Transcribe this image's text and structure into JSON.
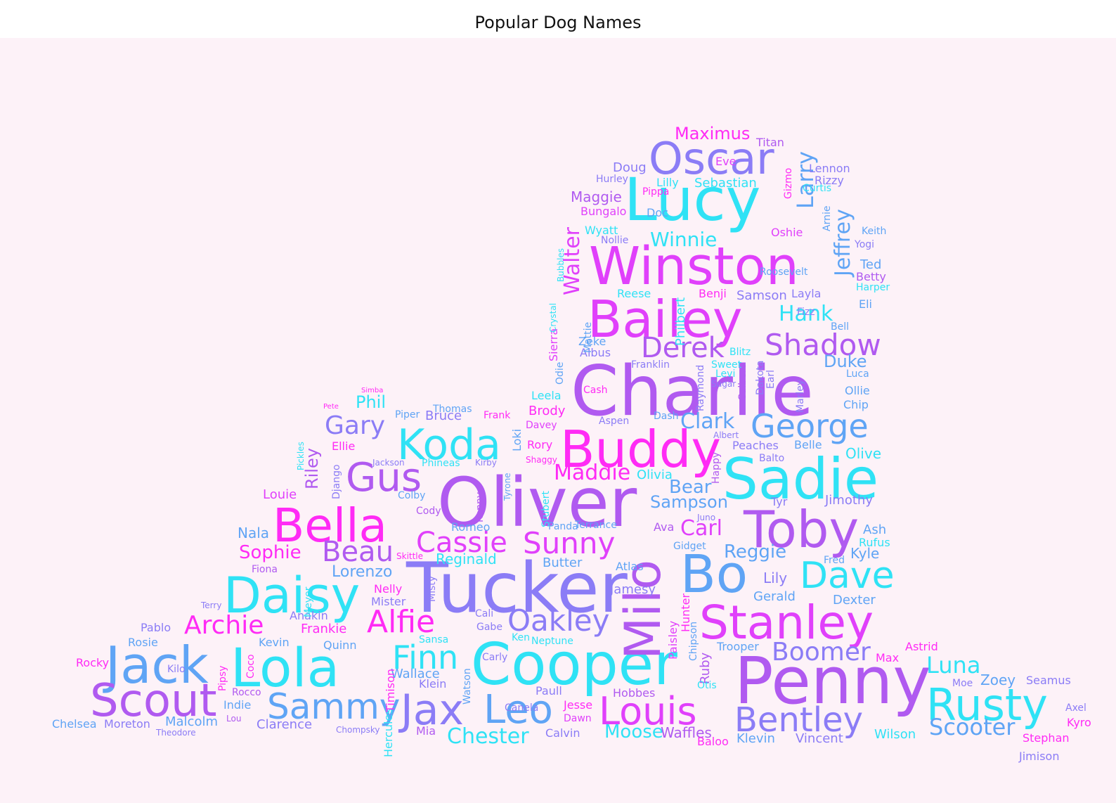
{
  "title": "Popular Dog Names",
  "palette": [
    "#ff2bf5",
    "#e040fb",
    "#b05af0",
    "#8b7cf6",
    "#5fa4f5",
    "#2fe2f5"
  ],
  "words": [
    {
      "t": "Charlie",
      "c": 2
    },
    {
      "t": "Oliver",
      "c": 2
    },
    {
      "t": "Cooper",
      "c": 5
    },
    {
      "t": "Penny",
      "c": 2
    },
    {
      "t": "Tucker",
      "c": 3
    },
    {
      "t": "Lola",
      "c": 5
    },
    {
      "t": "Buddy",
      "c": 0
    },
    {
      "t": "Sadie",
      "c": 5
    },
    {
      "t": "Winston",
      "c": 1
    },
    {
      "t": "Bella",
      "c": 0
    },
    {
      "t": "Lucy",
      "c": 5
    },
    {
      "t": "Bo",
      "c": 4
    },
    {
      "t": "Toby",
      "c": 2
    },
    {
      "t": "Daisy",
      "c": 5
    },
    {
      "t": "Stanley",
      "c": 1
    },
    {
      "t": "Bailey",
      "c": 1
    },
    {
      "t": "Jack",
      "c": 4
    },
    {
      "t": "Scout",
      "c": 2
    },
    {
      "t": "Rusty",
      "c": 5
    },
    {
      "t": "Milo",
      "c": 2
    },
    {
      "t": "Koda",
      "c": 5
    },
    {
      "t": "Oscar",
      "c": 3
    },
    {
      "t": "Gus",
      "c": 2
    },
    {
      "t": "Louis",
      "c": 1
    },
    {
      "t": "George",
      "c": 4
    },
    {
      "t": "Jax",
      "c": 3
    },
    {
      "t": "Leo",
      "c": 4
    },
    {
      "t": "Sammy",
      "c": 4
    },
    {
      "t": "Bentley",
      "c": 3
    },
    {
      "t": "Dave",
      "c": 5
    },
    {
      "t": "Alfie",
      "c": 0
    },
    {
      "t": "Finn",
      "c": 5
    },
    {
      "t": "Oakley",
      "c": 3
    },
    {
      "t": "Cassie",
      "c": 1
    },
    {
      "t": "Sunny",
      "c": 1
    },
    {
      "t": "Shadow",
      "c": 2
    },
    {
      "t": "Derek",
      "c": 2
    },
    {
      "t": "Archie",
      "c": 0
    },
    {
      "t": "Boomer",
      "c": 3
    },
    {
      "t": "Beau",
      "c": 2
    },
    {
      "t": "Gary",
      "c": 3
    },
    {
      "t": "Walter",
      "c": 1
    },
    {
      "t": "Jeffrey",
      "c": 4
    },
    {
      "t": "Larry",
      "c": 4
    },
    {
      "t": "Maddie",
      "c": 0
    },
    {
      "t": "Scooter",
      "c": 4
    },
    {
      "t": "Luna",
      "c": 5
    },
    {
      "t": "Chester",
      "c": 5
    },
    {
      "t": "Lorenzo",
      "c": 4
    },
    {
      "t": "Sampson",
      "c": 4
    },
    {
      "t": "Carl",
      "c": 1
    },
    {
      "t": "Bear",
      "c": 4
    },
    {
      "t": "Clark",
      "c": 4
    },
    {
      "t": "Hank",
      "c": 5
    },
    {
      "t": "Duke",
      "c": 4
    },
    {
      "t": "Winnie",
      "c": 5
    },
    {
      "t": "Maximus",
      "c": 0
    },
    {
      "t": "Reggie",
      "c": 4
    },
    {
      "t": "Sophie",
      "c": 0
    },
    {
      "t": "Riley",
      "c": 2
    },
    {
      "t": "Phil",
      "c": 5
    },
    {
      "t": "Moose",
      "c": 5
    },
    {
      "t": "Waffles",
      "c": 2
    },
    {
      "t": "Wallace",
      "c": 4
    },
    {
      "t": "Dexter",
      "c": 4
    },
    {
      "t": "Gerald",
      "c": 4
    },
    {
      "t": "Kyle",
      "c": 4
    },
    {
      "t": "Lily",
      "c": 3
    },
    {
      "t": "Bruce",
      "c": 3
    },
    {
      "t": "Sebastian",
      "c": 5
    },
    {
      "t": "Reginald",
      "c": 5
    },
    {
      "t": "Butter",
      "c": 4
    },
    {
      "t": "Jimothy",
      "c": 3
    },
    {
      "t": "Olive",
      "c": 5
    },
    {
      "t": "Tyr",
      "c": 3
    },
    {
      "t": "Ava",
      "c": 2
    },
    {
      "t": "Nala",
      "c": 4
    },
    {
      "t": "Louie",
      "c": 1
    },
    {
      "t": "Pablo",
      "c": 3
    },
    {
      "t": "Rosie",
      "c": 4
    },
    {
      "t": "Rocky",
      "c": 0
    },
    {
      "t": "Indie",
      "c": 4
    },
    {
      "t": "Malcolm",
      "c": 4
    },
    {
      "t": "Chelsea",
      "c": 4
    },
    {
      "t": "Moreton",
      "c": 3
    },
    {
      "t": "Clarence",
      "c": 3
    },
    {
      "t": "Mia",
      "c": 2
    },
    {
      "t": "Calvin",
      "c": 3
    },
    {
      "t": "Dawn",
      "c": 1
    },
    {
      "t": "Jesse",
      "c": 0
    },
    {
      "t": "Hobbes",
      "c": 2
    },
    {
      "t": "Baloo",
      "c": 0
    },
    {
      "t": "Klevin",
      "c": 4
    },
    {
      "t": "Vincent",
      "c": 3
    },
    {
      "t": "Wilson",
      "c": 5
    },
    {
      "t": "Stephan",
      "c": 0
    },
    {
      "t": "Kyro",
      "c": 0
    },
    {
      "t": "Jimison",
      "c": 3
    },
    {
      "t": "Seamus",
      "c": 3
    },
    {
      "t": "Zoey",
      "c": 4
    },
    {
      "t": "Moe",
      "c": 3
    },
    {
      "t": "Astrid",
      "c": 0
    },
    {
      "t": "Max",
      "c": 0
    },
    {
      "t": "Axel",
      "c": 3
    },
    {
      "t": "Ruby",
      "c": 2
    },
    {
      "t": "Otis",
      "c": 5
    },
    {
      "t": "Trooper",
      "c": 4
    },
    {
      "t": "Paisley",
      "c": 1
    },
    {
      "t": "Hunter",
      "c": 0
    },
    {
      "t": "Chipson",
      "c": 4
    },
    {
      "t": "Atlas",
      "c": 4
    },
    {
      "t": "Jamesy",
      "c": 3
    },
    {
      "t": "Terrance",
      "c": 4
    },
    {
      "t": "Romeo",
      "c": 4
    },
    {
      "t": "Panda",
      "c": 4
    },
    {
      "t": "Olivia",
      "c": 5
    },
    {
      "t": "Juno",
      "c": 3
    },
    {
      "t": "Gidget",
      "c": 4
    },
    {
      "t": "Ash",
      "c": 4
    },
    {
      "t": "Rufus",
      "c": 5
    },
    {
      "t": "Fred",
      "c": 4
    },
    {
      "t": "Misty",
      "c": 3
    },
    {
      "t": "Nelly",
      "c": 0
    },
    {
      "t": "Mister",
      "c": 3
    },
    {
      "t": "Anakin",
      "c": 3
    },
    {
      "t": "Frankie",
      "c": 0
    },
    {
      "t": "Kevin",
      "c": 4
    },
    {
      "t": "Quinn",
      "c": 4
    },
    {
      "t": "Coco",
      "c": 0
    },
    {
      "t": "Kilo",
      "c": 3
    },
    {
      "t": "Pipsy",
      "c": 0
    },
    {
      "t": "Rocco",
      "c": 2
    },
    {
      "t": "Lou",
      "c": 2
    },
    {
      "t": "Theodore",
      "c": 3
    },
    {
      "t": "Chompsky",
      "c": 3
    },
    {
      "t": "Hercules",
      "c": 5
    },
    {
      "t": "Timison",
      "c": 0
    },
    {
      "t": "Watson",
      "c": 4
    },
    {
      "t": "Carly",
      "c": 3
    },
    {
      "t": "Ken",
      "c": 5
    },
    {
      "t": "Neptune",
      "c": 5
    },
    {
      "t": "Canela",
      "c": 3
    },
    {
      "t": "Paull",
      "c": 3
    },
    {
      "t": "Klein",
      "c": 3
    },
    {
      "t": "Sansa",
      "c": 5
    },
    {
      "t": "Gabe",
      "c": 3
    },
    {
      "t": "Cali",
      "c": 3
    },
    {
      "t": "Fiona",
      "c": 2
    },
    {
      "t": "Meyer",
      "c": 5
    },
    {
      "t": "Skittle",
      "c": 0
    },
    {
      "t": "Terry",
      "c": 3
    },
    {
      "t": "Cody",
      "c": 2
    },
    {
      "t": "Jackson",
      "c": 3
    },
    {
      "t": "Ellie",
      "c": 0
    },
    {
      "t": "Django",
      "c": 3
    },
    {
      "t": "Pickles",
      "c": 5
    },
    {
      "t": "Colby",
      "c": 4
    },
    {
      "t": "Phineas",
      "c": 5
    },
    {
      "t": "Kirby",
      "c": 3
    },
    {
      "t": "Kenny",
      "c": 2
    },
    {
      "t": "Tyrone",
      "c": 4
    },
    {
      "t": "Stubert",
      "c": 5
    },
    {
      "t": "Loki",
      "c": 4
    },
    {
      "t": "Rory",
      "c": 0
    },
    {
      "t": "Davey",
      "c": 1
    },
    {
      "t": "Brody",
      "c": 0
    },
    {
      "t": "Frank",
      "c": 0
    },
    {
      "t": "Leela",
      "c": 5
    },
    {
      "t": "Odie",
      "c": 4
    },
    {
      "t": "Shaggy",
      "c": 0
    },
    {
      "t": "Cash",
      "c": 0
    },
    {
      "t": "Aspen",
      "c": 3
    },
    {
      "t": "Dash",
      "c": 4
    },
    {
      "t": "Albert",
      "c": 3
    },
    {
      "t": "Peaches",
      "c": 3
    },
    {
      "t": "Belle",
      "c": 4
    },
    {
      "t": "Balto",
      "c": 3
    },
    {
      "t": "Happy",
      "c": 2
    },
    {
      "t": "Chip",
      "c": 4
    },
    {
      "t": "Ollie",
      "c": 4
    },
    {
      "t": "Luca",
      "c": 4
    },
    {
      "t": "Calbert",
      "c": 2
    },
    {
      "t": "Levi",
      "c": 5
    },
    {
      "t": "Dakota",
      "c": 3
    },
    {
      "t": "Earl",
      "c": 3
    },
    {
      "t": "Marley",
      "c": 3
    },
    {
      "t": "Sweet",
      "c": 5
    },
    {
      "t": "Franklin",
      "c": 3
    },
    {
      "t": "Blitz",
      "c": 5
    },
    {
      "t": "Raymond",
      "c": 3
    },
    {
      "t": "Sugar",
      "c": 3
    },
    {
      "t": "Zeke",
      "c": 4
    },
    {
      "t": "Albus",
      "c": 3
    },
    {
      "t": "Mattie",
      "c": 4
    },
    {
      "t": "Sierra",
      "c": 1
    },
    {
      "t": "Crystal",
      "c": 5
    },
    {
      "t": "Bubbles",
      "c": 5
    },
    {
      "t": "Philbert",
      "c": 5
    },
    {
      "t": "Reese",
      "c": 5
    },
    {
      "t": "Benji",
      "c": 0
    },
    {
      "t": "Samson",
      "c": 3
    },
    {
      "t": "Layla",
      "c": 3
    },
    {
      "t": "Fizz",
      "c": 3
    },
    {
      "t": "Bell",
      "c": 4
    },
    {
      "t": "Eli",
      "c": 4
    },
    {
      "t": "Harper",
      "c": 5
    },
    {
      "t": "Betty",
      "c": 2
    },
    {
      "t": "Ted",
      "c": 4
    },
    {
      "t": "Yogi",
      "c": 3
    },
    {
      "t": "Keith",
      "c": 4
    },
    {
      "t": "Roosevelt",
      "c": 4
    },
    {
      "t": "Oshie",
      "c": 1
    },
    {
      "t": "Wyatt",
      "c": 5
    },
    {
      "t": "Nollie",
      "c": 3
    },
    {
      "t": "Doc",
      "c": 4
    },
    {
      "t": "Bungalo",
      "c": 1
    },
    {
      "t": "Maggie",
      "c": 2
    },
    {
      "t": "Hurley",
      "c": 3
    },
    {
      "t": "Doug",
      "c": 3
    },
    {
      "t": "Lilly",
      "c": 5
    },
    {
      "t": "Pippa",
      "c": 0
    },
    {
      "t": "Eve",
      "c": 1
    },
    {
      "t": "Titan",
      "c": 2
    },
    {
      "t": "Gizmo",
      "c": 0
    },
    {
      "t": "Arnie",
      "c": 4
    },
    {
      "t": "Lennon",
      "c": 3
    },
    {
      "t": "Rizzy",
      "c": 3
    },
    {
      "t": "Curtis",
      "c": 5
    },
    {
      "t": "Pete",
      "c": 0
    },
    {
      "t": "Simba",
      "c": 0
    },
    {
      "t": "Thomas",
      "c": 4
    },
    {
      "t": "Piper",
      "c": 4
    }
  ]
}
